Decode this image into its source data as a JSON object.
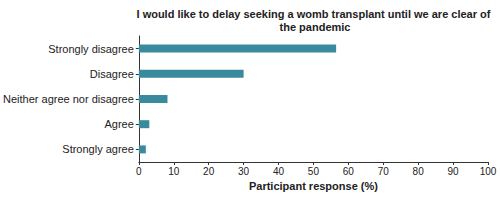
{
  "chart_data": {
    "type": "bar",
    "orientation": "horizontal",
    "title": "I would like to delay seeking a womb transplant until we are clear of the pandemic",
    "x_label": "Participant response (%)",
    "categories": [
      "Strongly disagree",
      "Disagree",
      "Neither agree nor disagree",
      "Agree",
      "Strongly agree"
    ],
    "values": [
      56.5,
      30,
      8.2,
      3,
      2
    ],
    "color": "#3a8a9e",
    "xlim": [
      0,
      100
    ],
    "xticks": [
      0,
      10,
      20,
      30,
      40,
      50,
      60,
      70,
      80,
      90,
      100
    ],
    "grid": false
  }
}
